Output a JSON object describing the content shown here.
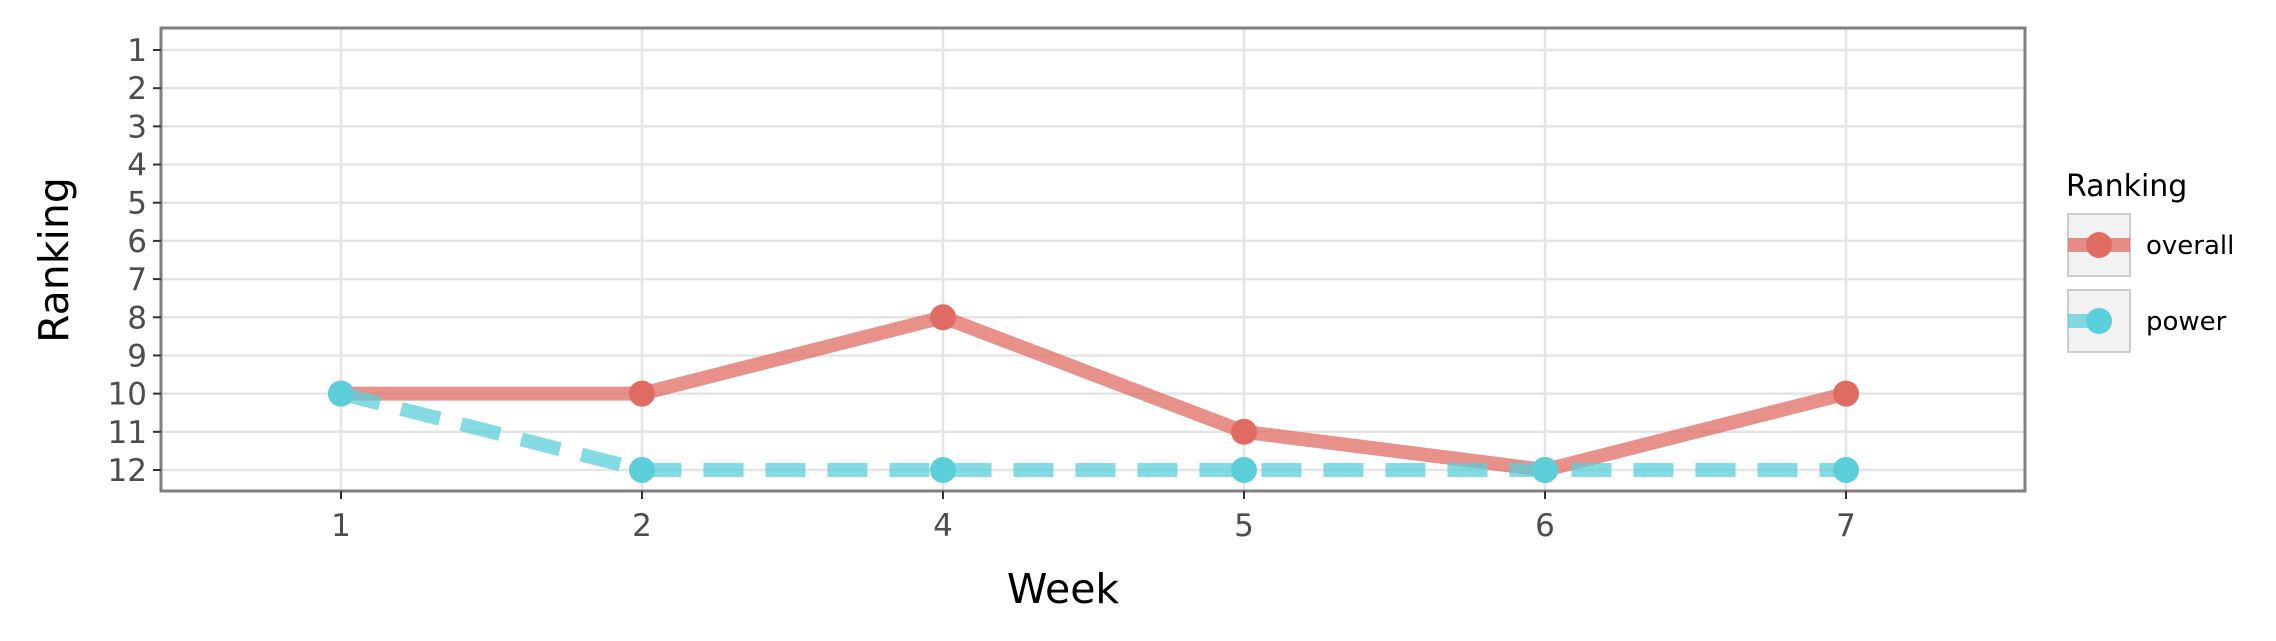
{
  "chart_data": {
    "type": "line",
    "xlabel": "Week",
    "ylabel": "Ranking",
    "x_categories": [
      "1",
      "2",
      "4",
      "5",
      "6",
      "7"
    ],
    "y_ticks": [
      "1",
      "2",
      "3",
      "4",
      "5",
      "6",
      "7",
      "8",
      "9",
      "10",
      "11",
      "12"
    ],
    "ylim": [
      1,
      12
    ],
    "y_reversed": true,
    "grid": true,
    "legend": {
      "title": "Ranking",
      "placement": "right"
    },
    "series": [
      {
        "name": "overall",
        "values": [
          10,
          10,
          8,
          11,
          12,
          10
        ],
        "color": "#e06b63",
        "line_style": "solid"
      },
      {
        "name": "power",
        "values": [
          10,
          12,
          12,
          12,
          12,
          12
        ],
        "color": "#5bcfd9",
        "line_style": "dashed"
      }
    ]
  }
}
